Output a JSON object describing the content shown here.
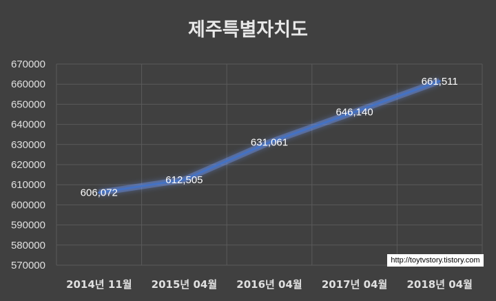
{
  "chart_data": {
    "type": "line",
    "title": "제주특별자치도",
    "categories": [
      "2014년 11월",
      "2015년 04월",
      "2016년 04월",
      "2017년 04월",
      "2018년 04월"
    ],
    "series": [
      {
        "values": [
          606072,
          612505,
          631061,
          646140,
          661511
        ],
        "labels": [
          "606,072",
          "612,505",
          "631,061",
          "646,140",
          "661,511"
        ],
        "color": "#4472c4"
      }
    ],
    "yticks": [
      "670000",
      "660000",
      "650000",
      "640000",
      "630000",
      "620000",
      "610000",
      "600000",
      "590000",
      "580000",
      "570000"
    ],
    "ylim": [
      570000,
      670000
    ],
    "grid": true,
    "background": "#404040"
  },
  "watermark": "http://toytvstory.tistory.com"
}
